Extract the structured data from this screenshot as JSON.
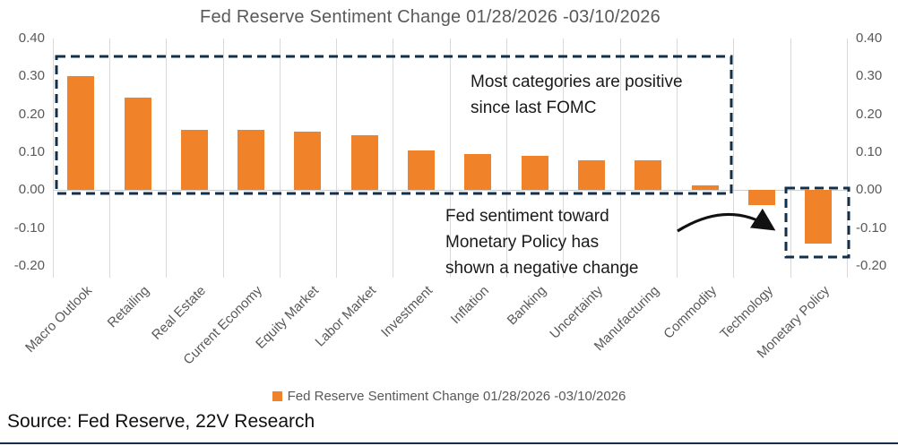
{
  "title": "Fed Reserve Sentiment Change 01/28/2026 -03/10/2026",
  "colors": {
    "bar": "#f0832a",
    "dashed_navy": "#122f4b",
    "gridline": "#d9d9d9",
    "axis_text": "#595959",
    "annotation_text": "#1a1a1a"
  },
  "annotations": {
    "positive_note": "Most categories are positive\nsince last FOMC",
    "negative_note": "Fed sentiment toward\nMonetary Policy has\nshown a negative change"
  },
  "legend": {
    "label": "Fed Reserve Sentiment Change 01/28/2026 -03/10/2026"
  },
  "source": "Source: Fed Reserve, 22V Research",
  "chart_data": {
    "type": "bar",
    "title": "Fed Reserve Sentiment Change 01/28/2026 -03/10/2026",
    "categories": [
      "Macro Outlook",
      "Retailing",
      "Real Estate",
      "Current Economy",
      "Equity Market",
      "Labor Market",
      "Investment",
      "Inflation",
      "Banking",
      "Uncertainty",
      "Manufacturing",
      "Commodity",
      "Technology",
      "Monetary Policy"
    ],
    "values": [
      0.3,
      0.245,
      0.16,
      0.16,
      0.155,
      0.145,
      0.105,
      0.095,
      0.09,
      0.08,
      0.078,
      0.012,
      -0.04,
      -0.14
    ],
    "xlabel": "",
    "ylabel": "",
    "ylim": [
      -0.2,
      0.4
    ],
    "yticks": [
      0.4,
      0.3,
      0.2,
      0.1,
      0.0,
      -0.1,
      -0.2
    ],
    "ytick_labels": [
      "0.40",
      "0.30",
      "0.20",
      "0.10",
      "0.00",
      "-0.10",
      "-0.20"
    ],
    "grid": "vertical-only",
    "legend_position": "bottom",
    "dual_axis_labels": true
  }
}
